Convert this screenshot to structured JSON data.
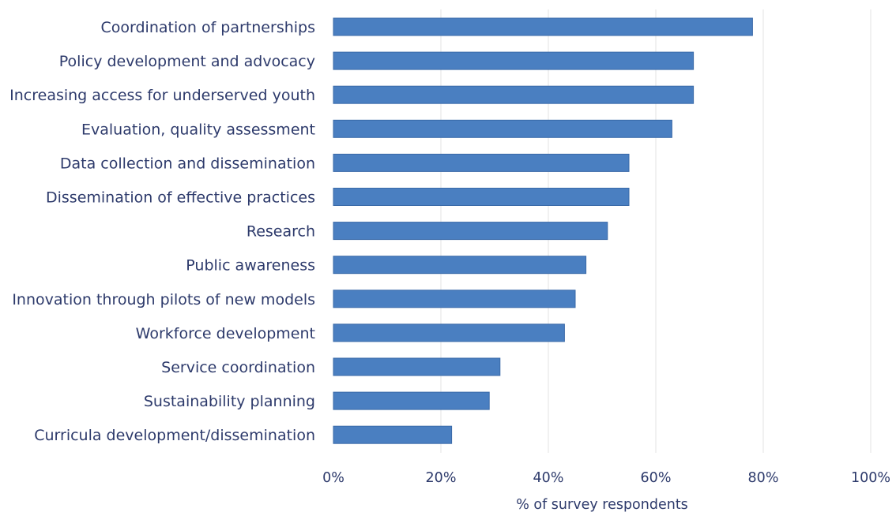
{
  "chart_data": {
    "type": "bar",
    "orientation": "horizontal",
    "categories": [
      "Coordination of partnerships",
      "Policy development and advocacy",
      "Increasing access for underserved youth",
      "Evaluation, quality assessment",
      "Data collection and dissemination",
      "Dissemination of effective practices",
      "Research",
      "Public awareness",
      "Innovation through pilots of new models",
      "Workforce development",
      "Service coordination",
      "Sustainability planning",
      "Curricula development/dissemination"
    ],
    "values": [
      78,
      67,
      67,
      63,
      55,
      55,
      51,
      47,
      45,
      43,
      31,
      29,
      22
    ],
    "xlabel": "% of survey respondents",
    "ylabel": "",
    "title": "",
    "xlim": [
      0,
      100
    ],
    "x_ticks": [
      "0%",
      "20%",
      "40%",
      "60%",
      "80%",
      "100%"
    ],
    "x_tick_values": [
      0,
      20,
      40,
      60,
      80,
      100
    ],
    "grid": true,
    "legend": "none",
    "colors": {
      "bar": "#4a7fc1",
      "bar_edge": "#3a6aa8",
      "text": "#2d3a6b",
      "grid": "#e3e3e3"
    }
  }
}
